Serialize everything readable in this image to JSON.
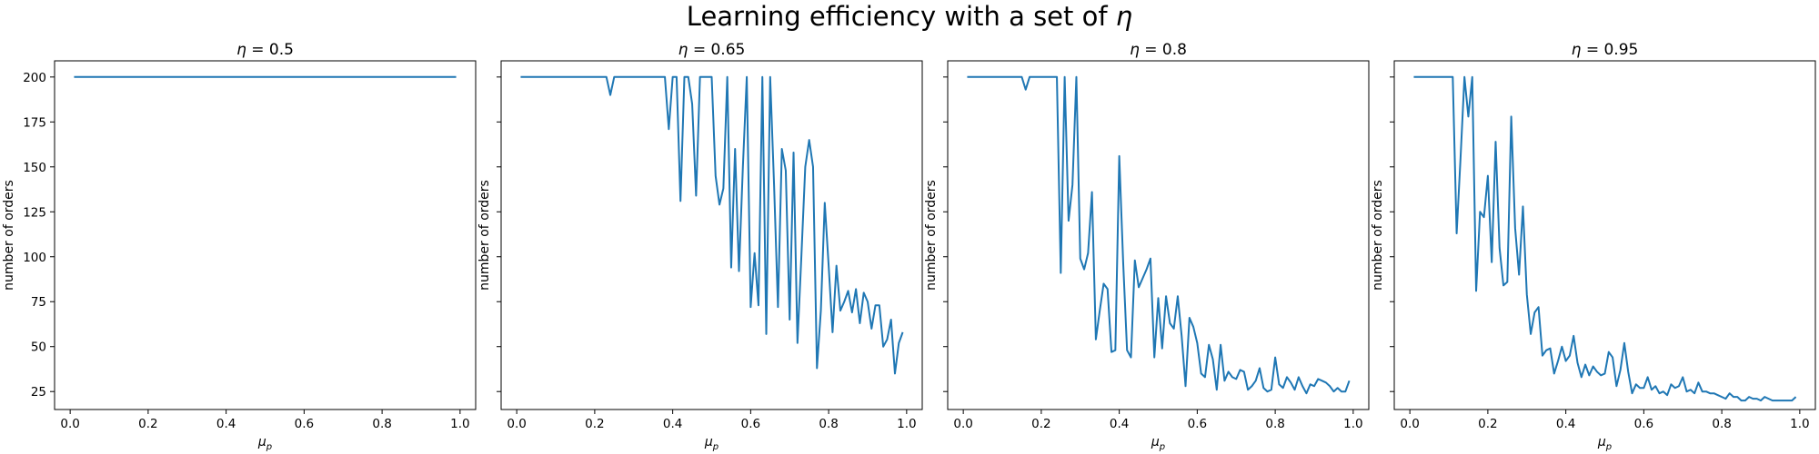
{
  "title_main": "Learning efficiency with a set of ",
  "title_symbol": "η",
  "colors": {
    "series": "#1f77b4",
    "axis": "#000000"
  },
  "chart_data": [
    {
      "type": "line",
      "title_symbol": "η",
      "title_value": " = 0.5",
      "xlabel_symbol": "μ",
      "xlabel_sub": "p",
      "ylabel": "number of orders",
      "xlim": [
        -0.04,
        1.04
      ],
      "ylim": [
        15,
        209
      ],
      "xticks": [
        0.0,
        0.2,
        0.4,
        0.6,
        0.8,
        1.0
      ],
      "xtick_labels": [
        "0.0",
        "0.2",
        "0.4",
        "0.6",
        "0.8",
        "1.0"
      ],
      "yticks": [
        25,
        50,
        75,
        100,
        125,
        150,
        175,
        200
      ],
      "ytick_labels": [
        "25",
        "50",
        "75",
        "100",
        "125",
        "150",
        "175",
        "200"
      ],
      "show_ytick_labels": true,
      "grid": false,
      "x": [
        0.01,
        0.99
      ],
      "y": [
        200,
        200
      ]
    },
    {
      "type": "line",
      "title_symbol": "η",
      "title_value": " = 0.65",
      "xlabel_symbol": "μ",
      "xlabel_sub": "p",
      "ylabel": "number of orders",
      "xlim": [
        -0.04,
        1.04
      ],
      "ylim": [
        15,
        209
      ],
      "xticks": [
        0.0,
        0.2,
        0.4,
        0.6,
        0.8,
        1.0
      ],
      "xtick_labels": [
        "0.0",
        "0.2",
        "0.4",
        "0.6",
        "0.8",
        "1.0"
      ],
      "yticks": [
        25,
        50,
        75,
        100,
        125,
        150,
        175,
        200
      ],
      "ytick_labels": [
        "25",
        "50",
        "75",
        "100",
        "125",
        "150",
        "175",
        "200"
      ],
      "show_ytick_labels": false,
      "grid": false,
      "x": [
        0.01,
        0.02,
        0.03,
        0.04,
        0.05,
        0.06,
        0.07,
        0.08,
        0.09,
        0.1,
        0.11,
        0.12,
        0.13,
        0.14,
        0.15,
        0.16,
        0.17,
        0.18,
        0.19,
        0.2,
        0.21,
        0.22,
        0.23,
        0.24,
        0.25,
        0.26,
        0.27,
        0.28,
        0.29,
        0.3,
        0.31,
        0.32,
        0.33,
        0.34,
        0.35,
        0.36,
        0.37,
        0.38,
        0.39,
        0.4,
        0.41,
        0.42,
        0.43,
        0.44,
        0.45,
        0.46,
        0.47,
        0.48,
        0.49,
        0.5,
        0.51,
        0.52,
        0.53,
        0.54,
        0.55,
        0.56,
        0.57,
        0.58,
        0.59,
        0.6,
        0.61,
        0.62,
        0.63,
        0.64,
        0.65,
        0.66,
        0.67,
        0.68,
        0.69,
        0.7,
        0.71,
        0.72,
        0.73,
        0.74,
        0.75,
        0.76,
        0.77,
        0.78,
        0.79,
        0.8,
        0.81,
        0.82,
        0.83,
        0.84,
        0.85,
        0.86,
        0.87,
        0.88,
        0.89,
        0.9,
        0.91,
        0.92,
        0.93,
        0.94,
        0.95,
        0.96,
        0.97,
        0.98,
        0.99
      ],
      "y": [
        200,
        200,
        200,
        200,
        200,
        200,
        200,
        200,
        200,
        200,
        200,
        200,
        200,
        200,
        200,
        200,
        200,
        200,
        200,
        200,
        200,
        200,
        200,
        190,
        200,
        200,
        200,
        200,
        200,
        200,
        200,
        200,
        200,
        200,
        200,
        200,
        200,
        200,
        171,
        200,
        200,
        131,
        200,
        200,
        185,
        134,
        200,
        200,
        200,
        200,
        145,
        129,
        138,
        200,
        94,
        160,
        92,
        150,
        200,
        72,
        102,
        73,
        200,
        57,
        200,
        140,
        72,
        160,
        148,
        65,
        158,
        52,
        100,
        150,
        165,
        150,
        38,
        70,
        130,
        95,
        58,
        95,
        70,
        75,
        81,
        69,
        82,
        63,
        80,
        75,
        60,
        73,
        73,
        50,
        54,
        65,
        35,
        52,
        58
      ]
    },
    {
      "type": "line",
      "title_symbol": "η",
      "title_value": " = 0.8",
      "xlabel_symbol": "μ",
      "xlabel_sub": "p",
      "ylabel": "number of orders",
      "xlim": [
        -0.04,
        1.04
      ],
      "ylim": [
        15,
        209
      ],
      "xticks": [
        0.0,
        0.2,
        0.4,
        0.6,
        0.8,
        1.0
      ],
      "xtick_labels": [
        "0.0",
        "0.2",
        "0.4",
        "0.6",
        "0.8",
        "1.0"
      ],
      "yticks": [
        25,
        50,
        75,
        100,
        125,
        150,
        175,
        200
      ],
      "ytick_labels": [
        "25",
        "50",
        "75",
        "100",
        "125",
        "150",
        "175",
        "200"
      ],
      "show_ytick_labels": false,
      "grid": false,
      "x": [
        0.01,
        0.02,
        0.03,
        0.04,
        0.05,
        0.06,
        0.07,
        0.08,
        0.09,
        0.1,
        0.11,
        0.12,
        0.13,
        0.14,
        0.15,
        0.16,
        0.17,
        0.18,
        0.19,
        0.2,
        0.21,
        0.22,
        0.23,
        0.24,
        0.25,
        0.26,
        0.27,
        0.28,
        0.29,
        0.3,
        0.31,
        0.32,
        0.33,
        0.34,
        0.35,
        0.36,
        0.37,
        0.38,
        0.39,
        0.4,
        0.41,
        0.42,
        0.43,
        0.44,
        0.45,
        0.46,
        0.47,
        0.48,
        0.49,
        0.5,
        0.51,
        0.52,
        0.53,
        0.54,
        0.55,
        0.56,
        0.57,
        0.58,
        0.59,
        0.6,
        0.61,
        0.62,
        0.63,
        0.64,
        0.65,
        0.66,
        0.67,
        0.68,
        0.69,
        0.7,
        0.71,
        0.72,
        0.73,
        0.74,
        0.75,
        0.76,
        0.77,
        0.78,
        0.79,
        0.8,
        0.81,
        0.82,
        0.83,
        0.84,
        0.85,
        0.86,
        0.87,
        0.88,
        0.89,
        0.9,
        0.91,
        0.92,
        0.93,
        0.94,
        0.95,
        0.96,
        0.97,
        0.98,
        0.99
      ],
      "y": [
        200,
        200,
        200,
        200,
        200,
        200,
        200,
        200,
        200,
        200,
        200,
        200,
        200,
        200,
        200,
        193,
        200,
        200,
        200,
        200,
        200,
        200,
        200,
        200,
        91,
        200,
        120,
        140,
        200,
        99,
        93,
        102,
        136,
        54,
        70,
        85,
        82,
        47,
        48,
        156,
        97,
        48,
        44,
        98,
        83,
        88,
        93,
        99,
        44,
        77,
        49,
        78,
        63,
        60,
        78,
        56,
        28,
        66,
        61,
        52,
        35,
        33,
        51,
        43,
        26,
        51,
        31,
        36,
        33,
        32,
        37,
        36,
        26,
        28,
        31,
        38,
        27,
        25,
        26,
        44,
        29,
        27,
        33,
        30,
        26,
        33,
        28,
        24,
        29,
        28,
        32,
        31,
        30,
        28,
        25,
        27,
        25,
        25,
        31
      ]
    },
    {
      "type": "line",
      "title_symbol": "η",
      "title_value": " = 0.95",
      "xlabel_symbol": "μ",
      "xlabel_sub": "p",
      "ylabel": "number of orders",
      "xlim": [
        -0.04,
        1.04
      ],
      "ylim": [
        15,
        209
      ],
      "xticks": [
        0.0,
        0.2,
        0.4,
        0.6,
        0.8,
        1.0
      ],
      "xtick_labels": [
        "0.0",
        "0.2",
        "0.4",
        "0.6",
        "0.8",
        "1.0"
      ],
      "yticks": [
        25,
        50,
        75,
        100,
        125,
        150,
        175,
        200
      ],
      "ytick_labels": [
        "25",
        "50",
        "75",
        "100",
        "125",
        "150",
        "175",
        "200"
      ],
      "show_ytick_labels": false,
      "grid": false,
      "x": [
        0.01,
        0.02,
        0.03,
        0.04,
        0.05,
        0.06,
        0.07,
        0.08,
        0.09,
        0.1,
        0.11,
        0.12,
        0.13,
        0.14,
        0.15,
        0.16,
        0.17,
        0.18,
        0.19,
        0.2,
        0.21,
        0.22,
        0.23,
        0.24,
        0.25,
        0.26,
        0.27,
        0.28,
        0.29,
        0.3,
        0.31,
        0.32,
        0.33,
        0.34,
        0.35,
        0.36,
        0.37,
        0.38,
        0.39,
        0.4,
        0.41,
        0.42,
        0.43,
        0.44,
        0.45,
        0.46,
        0.47,
        0.48,
        0.49,
        0.5,
        0.51,
        0.52,
        0.53,
        0.54,
        0.55,
        0.56,
        0.57,
        0.58,
        0.59,
        0.6,
        0.61,
        0.62,
        0.63,
        0.64,
        0.65,
        0.66,
        0.67,
        0.68,
        0.69,
        0.7,
        0.71,
        0.72,
        0.73,
        0.74,
        0.75,
        0.76,
        0.77,
        0.78,
        0.79,
        0.8,
        0.81,
        0.82,
        0.83,
        0.84,
        0.85,
        0.86,
        0.87,
        0.88,
        0.89,
        0.9,
        0.91,
        0.92,
        0.93,
        0.94,
        0.95,
        0.96,
        0.97,
        0.98,
        0.99
      ],
      "y": [
        200,
        200,
        200,
        200,
        200,
        200,
        200,
        200,
        200,
        200,
        200,
        113,
        155,
        200,
        178,
        200,
        81,
        125,
        122,
        145,
        97,
        164,
        105,
        84,
        86,
        178,
        116,
        90,
        128,
        79,
        57,
        69,
        72,
        45,
        48,
        49,
        35,
        42,
        50,
        42,
        45,
        56,
        41,
        33,
        40,
        34,
        39,
        36,
        34,
        35,
        47,
        44,
        28,
        37,
        52,
        36,
        24,
        29,
        27,
        27,
        33,
        26,
        28,
        24,
        25,
        23,
        29,
        27,
        28,
        33,
        25,
        26,
        24,
        30,
        25,
        25,
        24,
        24,
        23,
        22,
        21,
        24,
        22,
        22,
        20,
        20,
        22,
        21,
        21,
        20,
        22,
        21,
        20,
        20,
        20,
        20,
        20,
        20,
        22
      ]
    }
  ]
}
